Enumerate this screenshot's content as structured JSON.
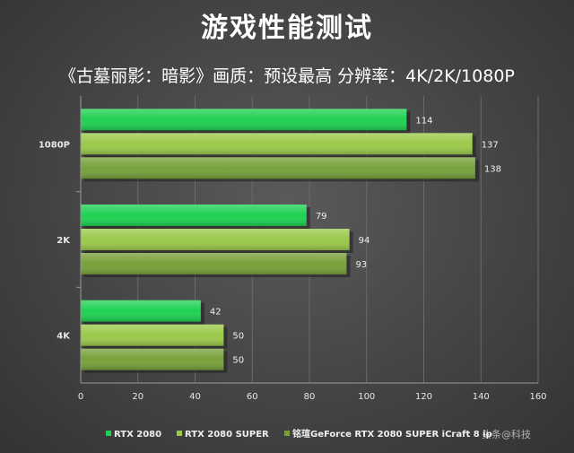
{
  "chart_data": {
    "type": "bar",
    "orientation": "horizontal",
    "title": "游戏性能测试",
    "subtitle": "《古墓丽影：暗影》画质：预设最高  分辨率：4K/2K/1080P",
    "categories": [
      "1080P",
      "2K",
      "4K"
    ],
    "series": [
      {
        "name": "RTX 2080",
        "values": [
          114,
          79,
          42
        ],
        "color": "#1fd152"
      },
      {
        "name": "RTX 2080 SUPER",
        "values": [
          137,
          94,
          50
        ],
        "color": "#9bc94a"
      },
      {
        "name": "铭瑄GeForce RTX 2080 SUPER iCraft 8 ip",
        "values": [
          138,
          93,
          50
        ],
        "color": "#77a03a"
      }
    ],
    "xlim": [
      0,
      160
    ],
    "xticks": [
      "0",
      "20",
      "40",
      "60",
      "80",
      "100",
      "120",
      "140",
      "160"
    ],
    "grid": true,
    "legend_position": "bottom"
  },
  "watermark": "头条@科技"
}
